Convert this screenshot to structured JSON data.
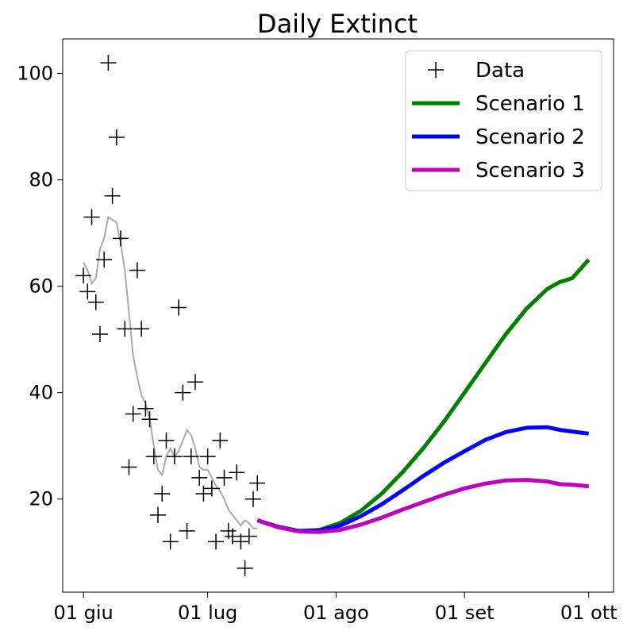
{
  "chart_data": {
    "type": "line",
    "title": "Daily Extinct",
    "xlabel": "",
    "ylabel": "",
    "x_ticks": [
      "01 giu",
      "01 lug",
      "01 ago",
      "01 set",
      "01 ott"
    ],
    "x_tick_dates": [
      "2020-06-01",
      "2020-07-01",
      "2020-08-01",
      "2020-09-01",
      "2020-10-01"
    ],
    "xlim": [
      "2020-05-27",
      "2020-10-07"
    ],
    "y_ticks": [
      20,
      40,
      60,
      80,
      100
    ],
    "ylim": [
      2.5,
      106.5
    ],
    "grid": false,
    "legend_position": "top-right",
    "colors": {
      "data": "#000000",
      "smooth": "#aaaaaa",
      "scenario1": "#008000",
      "scenario2": "#0000ff",
      "scenario3": "#bf00bf"
    },
    "data_points": {
      "name": "Data",
      "x": [
        "2020-06-01",
        "2020-06-02",
        "2020-06-03",
        "2020-06-04",
        "2020-06-05",
        "2020-06-06",
        "2020-06-07",
        "2020-06-08",
        "2020-06-09",
        "2020-06-10",
        "2020-06-11",
        "2020-06-12",
        "2020-06-13",
        "2020-06-14",
        "2020-06-15",
        "2020-06-16",
        "2020-06-17",
        "2020-06-18",
        "2020-06-19",
        "2020-06-20",
        "2020-06-21",
        "2020-06-22",
        "2020-06-23",
        "2020-06-24",
        "2020-06-25",
        "2020-06-26",
        "2020-06-27",
        "2020-06-28",
        "2020-06-29",
        "2020-06-30",
        "2020-07-01",
        "2020-07-02",
        "2020-07-03",
        "2020-07-04",
        "2020-07-05",
        "2020-07-06",
        "2020-07-07",
        "2020-07-08",
        "2020-07-09",
        "2020-07-10",
        "2020-07-11",
        "2020-07-12",
        "2020-07-13"
      ],
      "y": [
        62,
        59,
        73,
        57,
        51,
        65,
        102,
        77,
        88,
        69,
        52,
        26,
        36,
        63,
        52,
        37,
        35,
        28,
        17,
        21,
        31,
        12,
        28,
        56,
        40,
        14,
        28,
        42,
        24,
        21,
        28,
        22,
        12,
        31,
        24,
        14,
        13,
        25,
        12,
        7,
        13,
        20,
        23
      ]
    },
    "smoothed": {
      "x": [
        "2020-06-01",
        "2020-06-02",
        "2020-06-03",
        "2020-06-04",
        "2020-06-05",
        "2020-06-06",
        "2020-06-07",
        "2020-06-08",
        "2020-06-09",
        "2020-06-10",
        "2020-06-11",
        "2020-06-12",
        "2020-06-13",
        "2020-06-14",
        "2020-06-15",
        "2020-06-16",
        "2020-06-17",
        "2020-06-18",
        "2020-06-19",
        "2020-06-20",
        "2020-06-21",
        "2020-06-22",
        "2020-06-23",
        "2020-06-24",
        "2020-06-25",
        "2020-06-26",
        "2020-06-27",
        "2020-06-28",
        "2020-06-29",
        "2020-06-30",
        "2020-07-01",
        "2020-07-02",
        "2020-07-03",
        "2020-07-04",
        "2020-07-05",
        "2020-07-06",
        "2020-07-07",
        "2020-07-08",
        "2020-07-09",
        "2020-07-10",
        "2020-07-11",
        "2020-07-12",
        "2020-07-13"
      ],
      "y": [
        64.5,
        63,
        60.5,
        61.5,
        67,
        69,
        73,
        72.5,
        72,
        68,
        63,
        55,
        47,
        43,
        39.5,
        38,
        35,
        30,
        25.5,
        24.5,
        28,
        29.5,
        28,
        29,
        31,
        33,
        32,
        29.5,
        26,
        25.5,
        25.5,
        24,
        22.5,
        21.5,
        20,
        18,
        17,
        16,
        15,
        16,
        15.5,
        14.5,
        14.5
      ]
    },
    "series": [
      {
        "name": "Scenario 1",
        "x": [
          "2020-07-13",
          "2020-07-18",
          "2020-07-23",
          "2020-07-28",
          "2020-08-02",
          "2020-08-07",
          "2020-08-12",
          "2020-08-17",
          "2020-08-22",
          "2020-08-27",
          "2020-09-01",
          "2020-09-06",
          "2020-09-11",
          "2020-09-16",
          "2020-09-21",
          "2020-09-24",
          "2020-09-27",
          "2020-10-01"
        ],
        "y": [
          16,
          14.8,
          14,
          14.2,
          15.5,
          17.8,
          21,
          25,
          29.5,
          34.5,
          40,
          45.5,
          51,
          55.8,
          59.5,
          60.8,
          61.5,
          65
        ]
      },
      {
        "name": "Scenario 2",
        "x": [
          "2020-07-13",
          "2020-07-18",
          "2020-07-23",
          "2020-07-28",
          "2020-08-02",
          "2020-08-07",
          "2020-08-12",
          "2020-08-17",
          "2020-08-22",
          "2020-08-27",
          "2020-09-01",
          "2020-09-06",
          "2020-09-11",
          "2020-09-16",
          "2020-09-21",
          "2020-09-24",
          "2020-09-27",
          "2020-10-01"
        ],
        "y": [
          16,
          14.8,
          14,
          14.1,
          15,
          16.8,
          19,
          21.6,
          24.3,
          26.8,
          29,
          31.1,
          32.6,
          33.4,
          33.5,
          33,
          32.7,
          32.3
        ]
      },
      {
        "name": "Scenario 3",
        "x": [
          "2020-07-13",
          "2020-07-18",
          "2020-07-23",
          "2020-07-28",
          "2020-08-02",
          "2020-08-07",
          "2020-08-12",
          "2020-08-17",
          "2020-08-22",
          "2020-08-27",
          "2020-09-01",
          "2020-09-06",
          "2020-09-11",
          "2020-09-16",
          "2020-09-21",
          "2020-09-24",
          "2020-09-27",
          "2020-10-01"
        ],
        "y": [
          16,
          14.7,
          13.9,
          13.8,
          14.2,
          15.2,
          16.5,
          18,
          19.4,
          20.8,
          22,
          22.9,
          23.5,
          23.6,
          23.3,
          22.8,
          22.7,
          22.4
        ]
      }
    ]
  }
}
